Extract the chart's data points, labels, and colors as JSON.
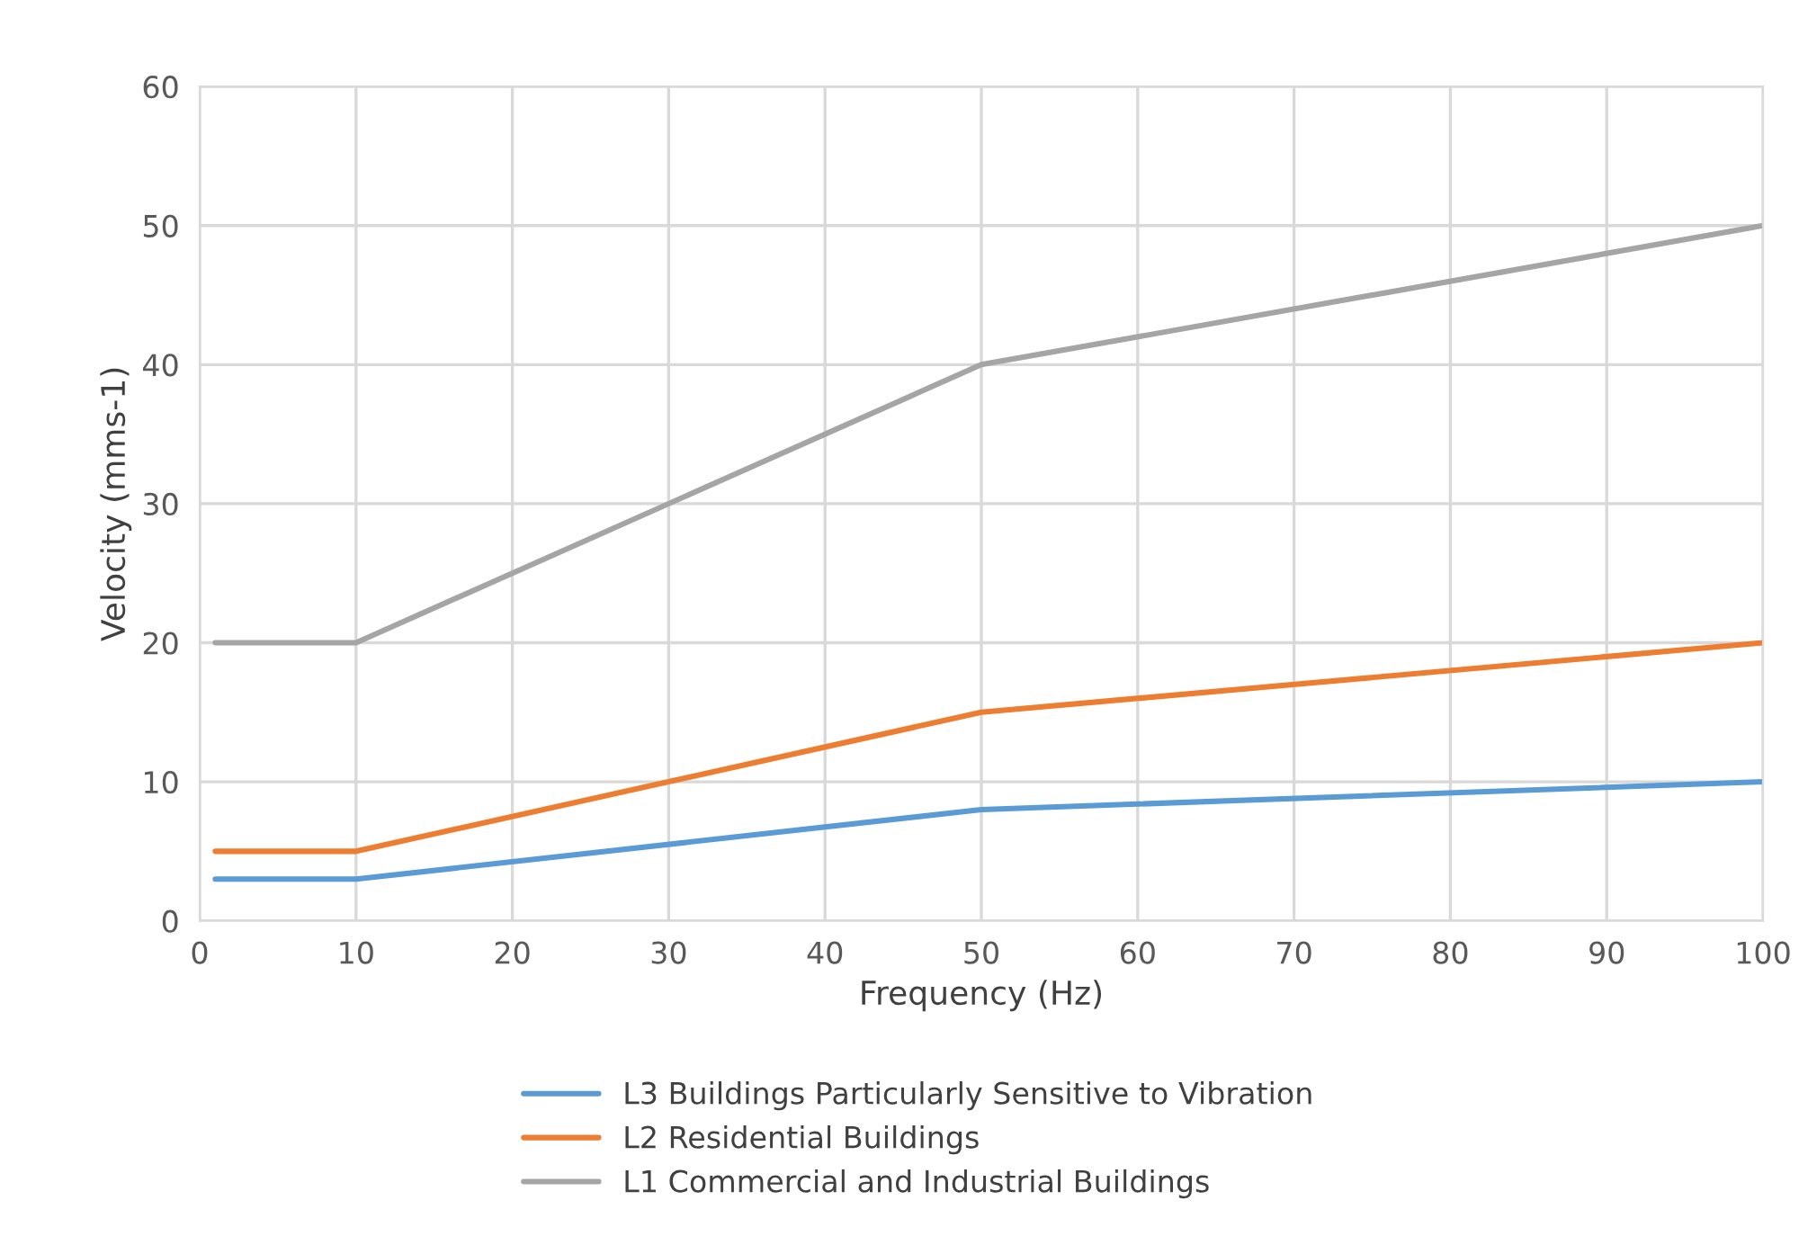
{
  "chart_data": {
    "type": "line",
    "xlabel": "Frequency (Hz)",
    "ylabel": "Velocity (mms-1)",
    "xlim": [
      0,
      100
    ],
    "xticks": [
      0,
      10,
      20,
      30,
      40,
      50,
      60,
      70,
      80,
      90,
      100
    ],
    "ylim": [
      0,
      60
    ],
    "yticks": [
      0,
      10,
      20,
      30,
      40,
      50,
      60
    ],
    "grid": true,
    "legend": "bottom",
    "marker": "none",
    "line_style": "solid",
    "series": [
      {
        "name": "L3 Buildings Particularly Sensitive to Vibration",
        "color": "#5b9bd5",
        "x": [
          1,
          10,
          50,
          100
        ],
        "values": [
          3,
          3,
          8,
          10
        ]
      },
      {
        "name": "L2 Residential Buildings",
        "color": "#ed7d31",
        "x": [
          1,
          10,
          50,
          100
        ],
        "values": [
          5,
          5,
          15,
          20
        ]
      },
      {
        "name": "L1 Commercial and Industrial Buildings",
        "color": "#a5a5a5",
        "x": [
          1,
          10,
          50,
          100
        ],
        "values": [
          20,
          20,
          40,
          50
        ]
      }
    ]
  }
}
